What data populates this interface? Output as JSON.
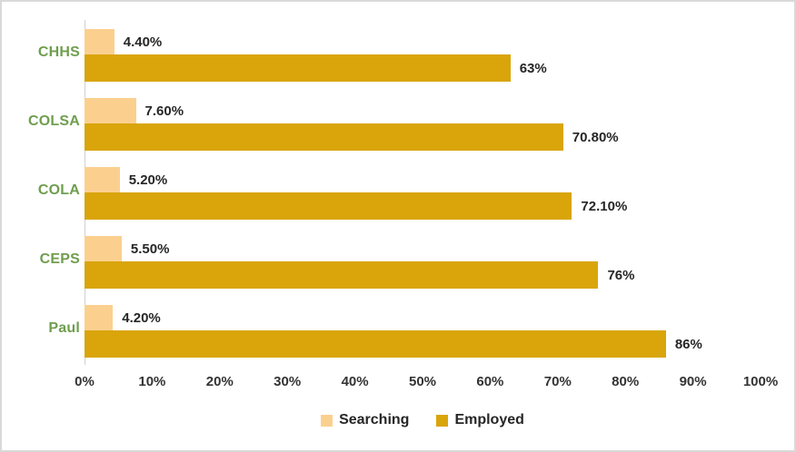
{
  "chart_data": {
    "type": "bar",
    "orientation": "horizontal",
    "title": "",
    "xlabel": "",
    "ylabel": "",
    "categories": [
      "CHHS",
      "COLSA",
      "COLA",
      "CEPS",
      "Paul"
    ],
    "series": [
      {
        "name": "Searching",
        "color": "#fbd08f",
        "values": [
          4.4,
          7.6,
          5.2,
          5.5,
          4.2
        ],
        "labels": [
          "4.40%",
          "7.60%",
          "5.20%",
          "5.50%",
          "4.20%"
        ]
      },
      {
        "name": "Employed",
        "color": "#d9a50b",
        "values": [
          63,
          70.8,
          72.1,
          76,
          86
        ],
        "labels": [
          "63%",
          "70.80%",
          "72.10%",
          "76%",
          "86%"
        ]
      }
    ],
    "xlim": [
      0,
      100
    ],
    "x_ticks": [
      "0%",
      "10%",
      "20%",
      "30%",
      "40%",
      "50%",
      "60%",
      "70%",
      "80%",
      "90%",
      "100%"
    ],
    "grid": false,
    "legend_position": "bottom"
  },
  "colors": {
    "searching_bar": "#fbd08f",
    "employed_bar": "#d9a50b",
    "category_label": "#6f9e4e",
    "data_label": "#262626",
    "axis_line": "#d0d0d0",
    "frame_border": "#d9d9d9",
    "background": "#ffffff"
  }
}
